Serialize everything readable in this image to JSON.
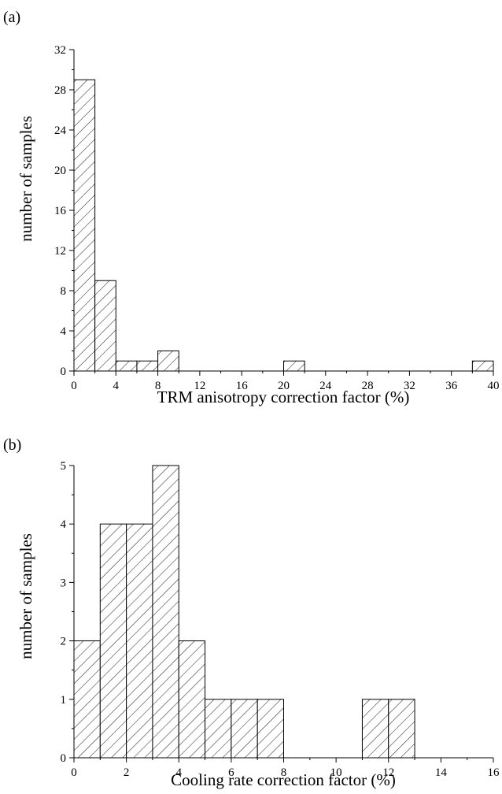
{
  "chart_data": [
    {
      "type": "bar",
      "panel_label": "(a)",
      "xlabel": "TRM anisotropy correction factor (%)",
      "ylabel": "number of samples",
      "xlim": [
        0,
        40
      ],
      "ylim": [
        0,
        32
      ],
      "xticks": [
        "0",
        "4",
        "8",
        "12",
        "16",
        "20",
        "24",
        "28",
        "32",
        "36",
        "40"
      ],
      "yticks": [
        "0",
        "4",
        "8",
        "12",
        "16",
        "20",
        "24",
        "28",
        "32"
      ],
      "bin_width": 2,
      "bins": [
        {
          "x0": 0,
          "x1": 2,
          "count": 29
        },
        {
          "x0": 2,
          "x1": 4,
          "count": 9
        },
        {
          "x0": 4,
          "x1": 6,
          "count": 1
        },
        {
          "x0": 6,
          "x1": 8,
          "count": 1
        },
        {
          "x0": 8,
          "x1": 10,
          "count": 2
        },
        {
          "x0": 20,
          "x1": 22,
          "count": 1
        },
        {
          "x0": 38,
          "x1": 40,
          "count": 1
        }
      ],
      "fill": "diagonal hatch",
      "grid": false
    },
    {
      "type": "bar",
      "panel_label": "(b)",
      "xlabel": "Cooling rate correction factor (%)",
      "ylabel": "number of samples",
      "xlim": [
        0,
        16
      ],
      "ylim": [
        0,
        5
      ],
      "xticks": [
        "0",
        "2",
        "4",
        "6",
        "8",
        "10",
        "12",
        "14",
        "16"
      ],
      "yticks": [
        "0",
        "1",
        "2",
        "3",
        "4",
        "5"
      ],
      "bin_width": 1,
      "bins": [
        {
          "x0": 0,
          "x1": 1,
          "count": 2
        },
        {
          "x0": 1,
          "x1": 2,
          "count": 4
        },
        {
          "x0": 2,
          "x1": 3,
          "count": 4
        },
        {
          "x0": 3,
          "x1": 4,
          "count": 5
        },
        {
          "x0": 4,
          "x1": 5,
          "count": 2
        },
        {
          "x0": 5,
          "x1": 6,
          "count": 1
        },
        {
          "x0": 6,
          "x1": 7,
          "count": 1
        },
        {
          "x0": 7,
          "x1": 8,
          "count": 1
        },
        {
          "x0": 11,
          "x1": 12,
          "count": 1
        },
        {
          "x0": 12,
          "x1": 13,
          "count": 1
        }
      ],
      "fill": "diagonal hatch",
      "grid": false
    }
  ]
}
